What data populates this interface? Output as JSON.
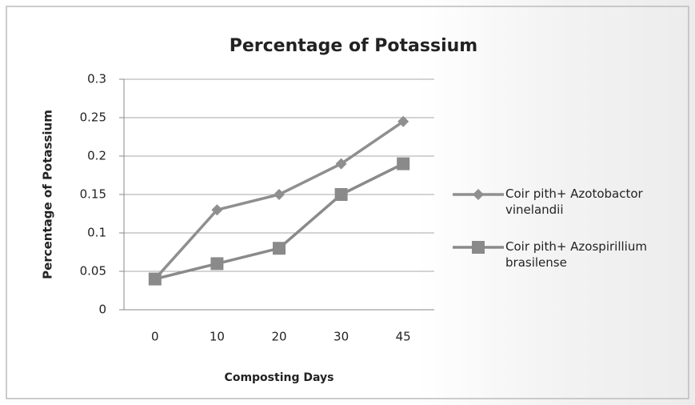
{
  "chart_data": {
    "type": "line",
    "title": "Percentage of Potassium",
    "x_label": "Composting Days",
    "y_label": "Percentage of Potassium",
    "categories": [
      "0",
      "10",
      "20",
      "30",
      "45"
    ],
    "series": [
      {
        "name": "Coir pith+ Azotobactor vinelandii",
        "color": "#8f8f8f",
        "marker": "diamond",
        "values": [
          0.04,
          0.13,
          0.15,
          0.19,
          0.245
        ]
      },
      {
        "name": "Coir pith+ Azospirillium brasilense",
        "color": "#8a8a8a",
        "marker": "square",
        "values": [
          0.04,
          0.06,
          0.08,
          0.15,
          0.19
        ]
      }
    ],
    "ylim": [
      0,
      0.3
    ],
    "yticks": [
      0,
      0.05,
      0.1,
      0.15,
      0.2,
      0.25,
      0.3
    ],
    "grid": true,
    "legend": "right"
  }
}
